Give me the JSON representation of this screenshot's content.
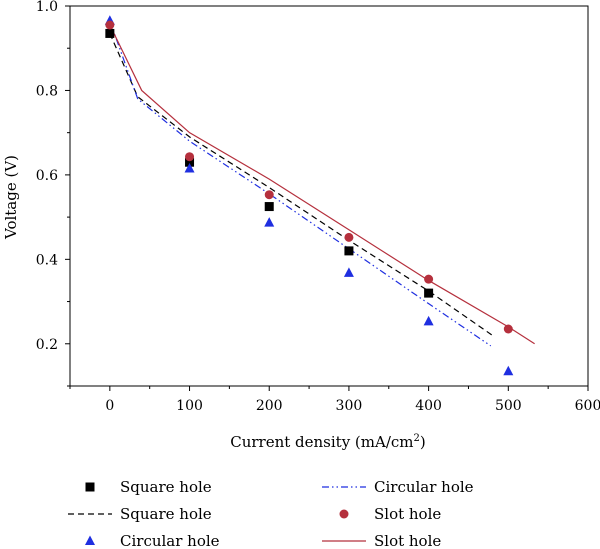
{
  "chart_data": {
    "type": "scatter",
    "xlabel": "Current density (mA/cm",
    "xlabel_sup": "2",
    "xlabel_end": ")",
    "ylabel": "Voltage (V)",
    "xlim": [
      -50,
      600
    ],
    "ylim": [
      0.1,
      1.0
    ],
    "x_ticks": [
      0,
      100,
      200,
      300,
      400,
      500,
      600
    ],
    "y_ticks": [
      0.2,
      0.4,
      0.6,
      0.8,
      1.0
    ],
    "x_tick_labels": [
      "0",
      "100",
      "200",
      "300",
      "400",
      "500",
      "600"
    ],
    "y_tick_labels": [
      "0.2",
      "0.4",
      "0.6",
      "0.8",
      "1.0"
    ],
    "legend_position": "bottom",
    "series": [
      {
        "name": "Square hole",
        "kind": "markers",
        "marker": "square",
        "color": "#000000",
        "points": [
          [
            0,
            0.935
          ],
          [
            100,
            0.63
          ],
          [
            200,
            0.525
          ],
          [
            300,
            0.42
          ],
          [
            400,
            0.32
          ]
        ]
      },
      {
        "name": "Square hole",
        "kind": "line",
        "style": "dashed",
        "color": "#000000",
        "points": [
          [
            0,
            0.935
          ],
          [
            35,
            0.785
          ],
          [
            100,
            0.69
          ],
          [
            200,
            0.57
          ],
          [
            300,
            0.445
          ],
          [
            400,
            0.325
          ],
          [
            480,
            0.22
          ]
        ]
      },
      {
        "name": "Circular hole",
        "kind": "markers",
        "marker": "triangle",
        "color": "#1f2fe0",
        "points": [
          [
            0,
            0.965
          ],
          [
            100,
            0.615
          ],
          [
            200,
            0.487
          ],
          [
            300,
            0.368
          ],
          [
            400,
            0.253
          ],
          [
            500,
            0.135
          ]
        ]
      },
      {
        "name": "Circular hole",
        "kind": "line",
        "style": "dashdotdot",
        "color": "#1f2fe0",
        "points": [
          [
            0,
            0.965
          ],
          [
            35,
            0.78
          ],
          [
            100,
            0.68
          ],
          [
            200,
            0.555
          ],
          [
            300,
            0.425
          ],
          [
            400,
            0.295
          ],
          [
            478,
            0.195
          ]
        ]
      },
      {
        "name": "Slot hole",
        "kind": "markers",
        "marker": "circle",
        "color": "#b5303d",
        "points": [
          [
            0,
            0.955
          ],
          [
            100,
            0.643
          ],
          [
            200,
            0.553
          ],
          [
            300,
            0.452
          ],
          [
            400,
            0.353
          ],
          [
            500,
            0.235
          ]
        ]
      },
      {
        "name": "Slot hole",
        "kind": "line",
        "style": "solid",
        "color": "#b5303d",
        "points": [
          [
            0,
            0.955
          ],
          [
            40,
            0.8
          ],
          [
            100,
            0.7
          ],
          [
            200,
            0.59
          ],
          [
            300,
            0.47
          ],
          [
            400,
            0.35
          ],
          [
            500,
            0.24
          ],
          [
            533,
            0.2
          ]
        ]
      }
    ]
  }
}
